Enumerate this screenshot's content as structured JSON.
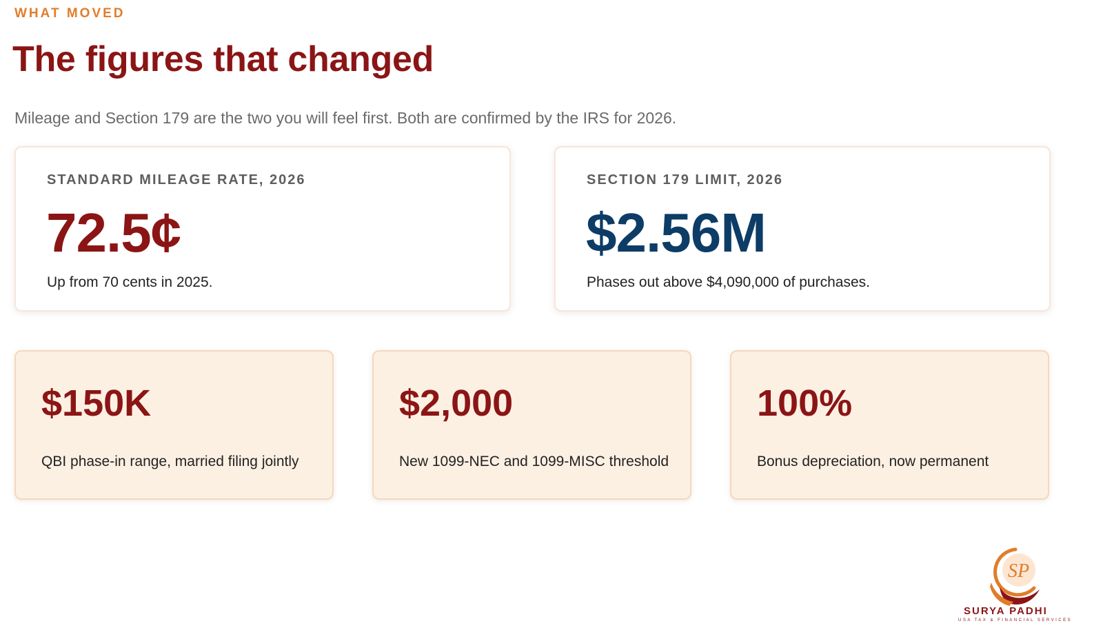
{
  "eyebrow": "WHAT MOVED",
  "title": "The figures that changed",
  "subtitle": "Mileage and Section 179 are the two you will feel first. Both are confirmed by the IRS for 2026.",
  "featured": [
    {
      "label": "STANDARD MILEAGE RATE, 2026",
      "value": "72.5¢",
      "note": "Up from 70 cents in 2025.",
      "value_color": "#8b1515"
    },
    {
      "label": "SECTION 179 LIMIT, 2026",
      "value": "$2.56M",
      "note": "Phases out above $4,090,000 of purchases.",
      "value_color": "#0d3c66"
    }
  ],
  "stats": [
    {
      "value": "$150K",
      "note": "QBI phase-in range, married filing jointly"
    },
    {
      "value": "$2,000",
      "note": "New 1099-NEC and 1099-MISC threshold"
    },
    {
      "value": "100%",
      "note": "Bonus depreciation, now permanent"
    }
  ],
  "brand": {
    "monogram": "SP",
    "name": "SURYA PADHI",
    "tagline": "USA TAX & FINANCIAL SERVICES",
    "colors": {
      "accent": "#e07d2c",
      "primary": "#8b1515",
      "secondary": "#0d3c66"
    }
  }
}
